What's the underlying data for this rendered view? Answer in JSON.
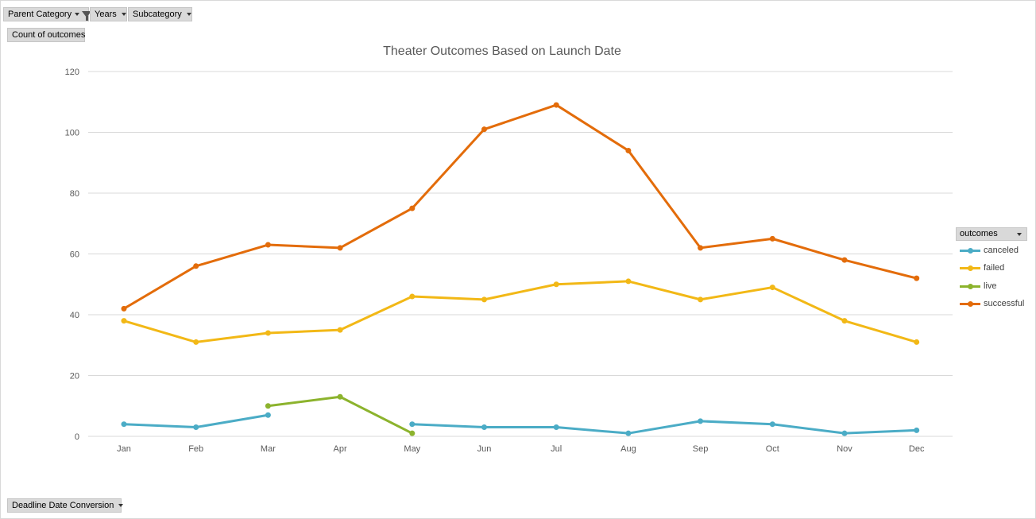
{
  "pivot": {
    "filter_fields": [
      {
        "label": "Parent Category",
        "filtered": true
      },
      {
        "label": "Years",
        "filtered": false
      },
      {
        "label": "Subcategory",
        "filtered": false
      }
    ],
    "value_field": "Count of outcomes",
    "axis_field": "Deadline Date Conversion",
    "legend_field": "outcomes"
  },
  "chart_data": {
    "type": "line",
    "title": "Theater Outcomes Based on Launch Date",
    "xlabel": "",
    "ylabel": "",
    "categories": [
      "Jan",
      "Feb",
      "Mar",
      "Apr",
      "May",
      "Jun",
      "Jul",
      "Aug",
      "Sep",
      "Oct",
      "Nov",
      "Dec"
    ],
    "ylim": [
      0,
      120
    ],
    "yticks": [
      0,
      20,
      40,
      60,
      80,
      100,
      120
    ],
    "grid": true,
    "legend_position": "right",
    "series": [
      {
        "name": "canceled",
        "color": "#4bacc6",
        "values": [
          4,
          3,
          7,
          null,
          4,
          3,
          3,
          1,
          5,
          4,
          1,
          2
        ]
      },
      {
        "name": "failed",
        "color": "#f2b816",
        "values": [
          38,
          31,
          34,
          35,
          46,
          45,
          50,
          51,
          45,
          49,
          38,
          31
        ]
      },
      {
        "name": "live",
        "color": "#8cb32d",
        "values": [
          null,
          null,
          10,
          13,
          1,
          null,
          null,
          null,
          null,
          null,
          null,
          null
        ]
      },
      {
        "name": "successful",
        "color": "#e36c0a",
        "values": [
          42,
          56,
          63,
          62,
          75,
          101,
          109,
          94,
          62,
          65,
          58,
          52
        ]
      }
    ]
  }
}
